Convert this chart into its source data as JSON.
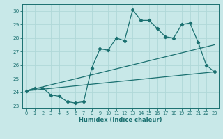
{
  "title": "",
  "xlabel": "Humidex (Indice chaleur)",
  "bg_color": "#c8e8e8",
  "line_color": "#1a7070",
  "grid_color": "#b0d8d8",
  "xlim": [
    -0.5,
    23.5
  ],
  "ylim": [
    22.8,
    30.5
  ],
  "xticks": [
    0,
    1,
    2,
    3,
    4,
    5,
    6,
    7,
    8,
    9,
    10,
    11,
    12,
    13,
    14,
    15,
    16,
    17,
    18,
    19,
    20,
    21,
    22,
    23
  ],
  "yticks": [
    23,
    24,
    25,
    26,
    27,
    28,
    29,
    30
  ],
  "line1_x": [
    0,
    1,
    2,
    3,
    4,
    5,
    6,
    7,
    8,
    9,
    10,
    11,
    12,
    13,
    14,
    15,
    16,
    17,
    18,
    19,
    20,
    21,
    22,
    23
  ],
  "line1_y": [
    24.1,
    24.3,
    24.3,
    23.8,
    23.7,
    23.3,
    23.2,
    23.3,
    25.8,
    27.2,
    27.1,
    28.0,
    27.8,
    30.1,
    29.3,
    29.3,
    28.7,
    28.1,
    28.0,
    29.0,
    29.1,
    27.7,
    26.0,
    25.5
  ],
  "line2_x": [
    0,
    23
  ],
  "line2_y": [
    24.1,
    25.5
  ],
  "line3_x": [
    0,
    23
  ],
  "line3_y": [
    24.1,
    27.5
  ]
}
